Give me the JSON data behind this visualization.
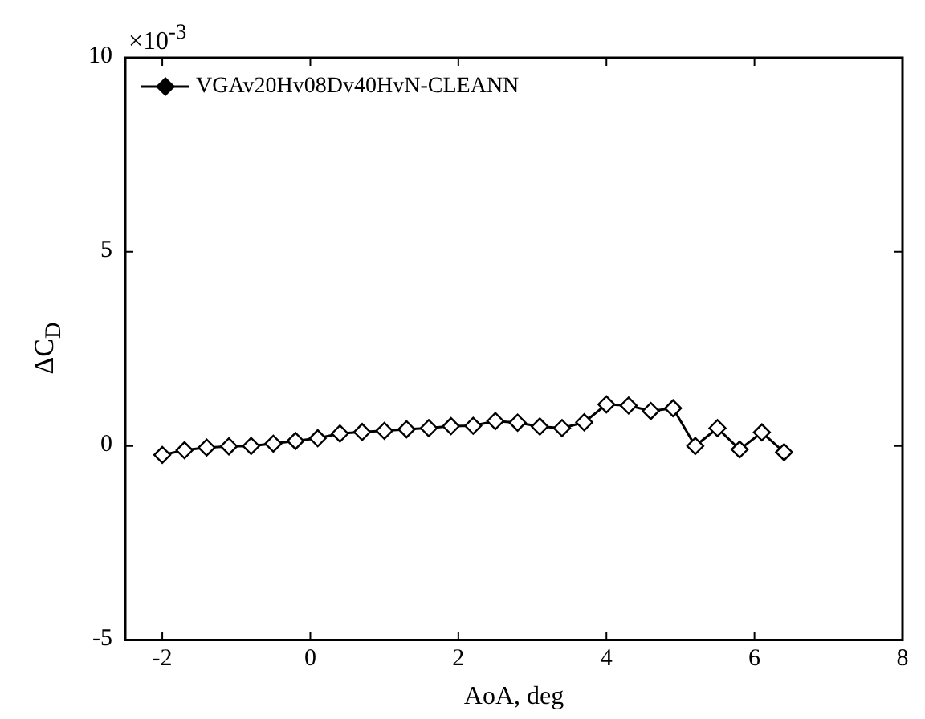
{
  "chart_data": {
    "type": "line",
    "xlabel": "AoA, deg",
    "ylabel": "ΔC$_{D}$",
    "annotations": [
      "×10$^{-3}$"
    ],
    "x": [
      -2,
      -1.7,
      -1.4,
      -1.1,
      -0.8,
      -0.5,
      -0.2,
      0.1,
      0.4,
      0.7,
      1,
      1.3,
      1.6,
      1.9,
      2.2,
      2.5,
      2.8,
      3.1,
      3.4,
      3.7,
      4,
      4.3,
      4.6,
      4.9,
      5.2,
      5.5,
      5.8,
      6.1,
      6.4
    ],
    "series": [
      {
        "name": "VGAv20Hv08Dv40HvN-CLEANN",
        "color": "#000000",
        "values": [
          -0.23,
          -0.11,
          -0.04,
          -0.01,
          0,
          0.06,
          0.13,
          0.2,
          0.32,
          0.36,
          0.39,
          0.43,
          0.46,
          0.51,
          0.52,
          0.64,
          0.6,
          0.5,
          0.46,
          0.61,
          1.07,
          1.04,
          0.9,
          0.97,
          0,
          0.46,
          -0.09,
          0.35,
          -0.16
        ]
      }
    ],
    "xlim": [
      -2.5,
      8
    ],
    "xticks": [
      -2,
      0,
      2,
      4,
      6,
      8
    ],
    "ylim": [
      -5,
      10
    ],
    "yticks": [
      -5,
      0,
      5,
      10
    ],
    "grid": false,
    "legend": "top left",
    "marker": "diamond",
    "line_style": "solid"
  }
}
